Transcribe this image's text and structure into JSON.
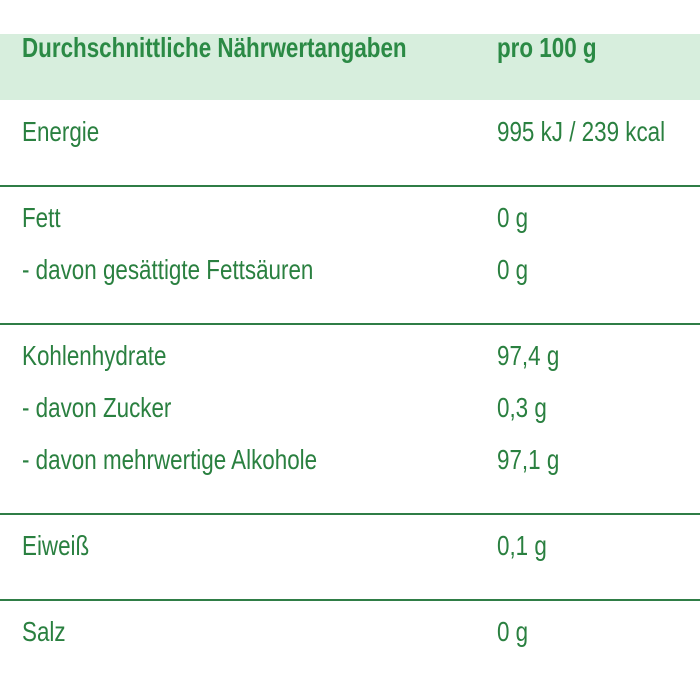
{
  "table": {
    "header": [
      "Durchschnittliche Nährwertangaben",
      "pro 100 g"
    ],
    "groups": [
      [
        [
          "Energie",
          "995 kJ / 239 kcal"
        ]
      ],
      [
        [
          "Fett",
          "0 g"
        ],
        [
          "- davon gesättigte Fettsäuren",
          "0 g"
        ]
      ],
      [
        [
          "Kohlenhydrate",
          "97,4 g"
        ],
        [
          "- davon Zucker",
          "0,3 g"
        ],
        [
          "- davon mehrwertige Alkohole",
          "97,1 g"
        ]
      ],
      [
        [
          "Eiweiß",
          "0,1 g"
        ]
      ],
      [
        [
          "Salz",
          "0 g"
        ]
      ]
    ]
  }
}
